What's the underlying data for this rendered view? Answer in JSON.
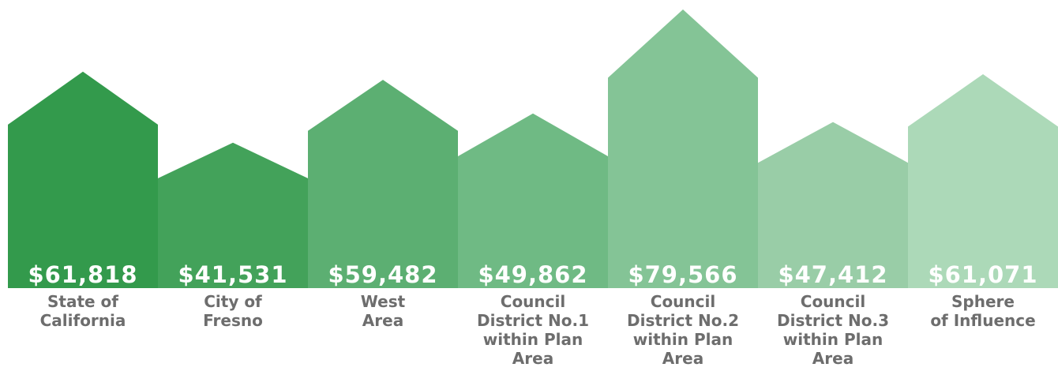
{
  "chart_data": {
    "type": "house-bar",
    "categories": [
      "State of\nCalifornia",
      "City of\nFresno",
      "West\nArea",
      "Council\nDistrict No.1\nwithin Plan\nArea",
      "Council\nDistrict No.2\nwithin Plan\nArea",
      "Council\nDistrict No.3\nwithin Plan\nArea",
      "Sphere\nof Influence"
    ],
    "values": [
      61818,
      41531,
      59482,
      49862,
      79566,
      47412,
      61071
    ],
    "value_labels": [
      "$61,818",
      "$41,531",
      "$59,482",
      "$49,862",
      "$79,566",
      "$47,412",
      "$61,071"
    ],
    "colors": [
      "#339a4c",
      "#43a25a",
      "#5caf72",
      "#6fba84",
      "#84c496",
      "#99cda7",
      "#acd9b8"
    ]
  }
}
